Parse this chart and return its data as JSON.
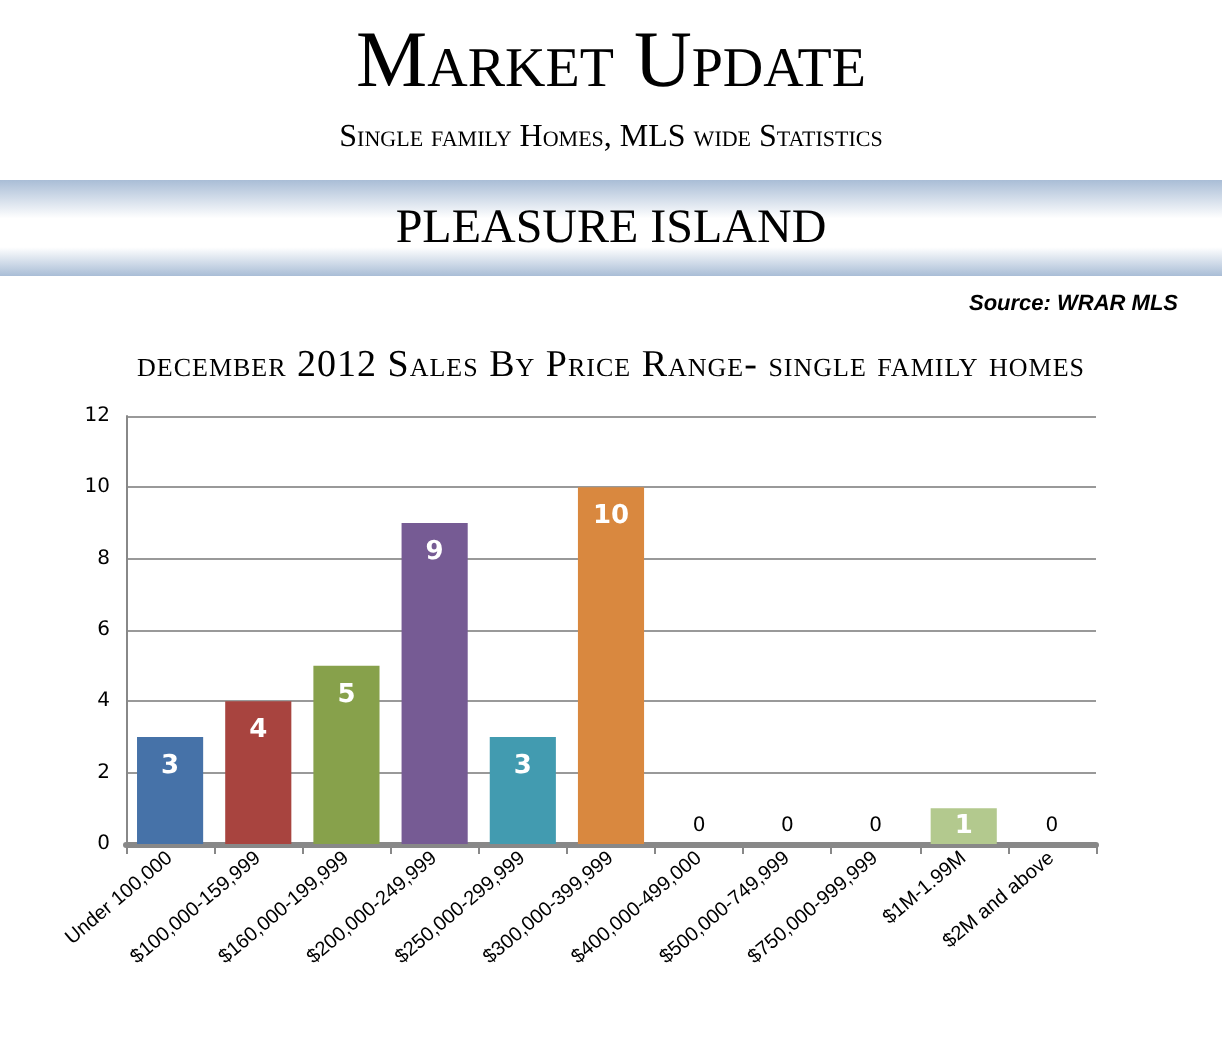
{
  "chart_data": {
    "type": "bar",
    "title": "Market Update",
    "subtitle": "Single family Homes, MLS wide Statistics",
    "annotations": [
      "PLEASURE ISLAND",
      "Source: WRAR MLS",
      "december 2012 Sales By Price Range- single family homes"
    ],
    "categories": [
      "Under 100,000",
      "$100,000-159,999",
      "$160,000-199,999",
      "$200,000-249,999",
      "$250,000-299,999",
      "$300,000-399,999",
      "$400,000-499,000",
      "$500,000-749,999",
      "$750,000-999,999",
      "$1M-1.99M",
      "$2M and above"
    ],
    "values": [
      3,
      4,
      5,
      9,
      3,
      10,
      0,
      0,
      0,
      1,
      0
    ],
    "colors": [
      "#4672a8",
      "#a8443f",
      "#87a14b",
      "#765b94",
      "#429bb0",
      "#d9883f",
      "#7f7f7f",
      "#7f7f7f",
      "#7f7f7f",
      "#b3c98e",
      "#7f7f7f"
    ],
    "data_labels": true,
    "ylim": [
      0,
      12
    ],
    "yticks": [
      0,
      2,
      4,
      6,
      8,
      10,
      12
    ],
    "grid": "y"
  }
}
